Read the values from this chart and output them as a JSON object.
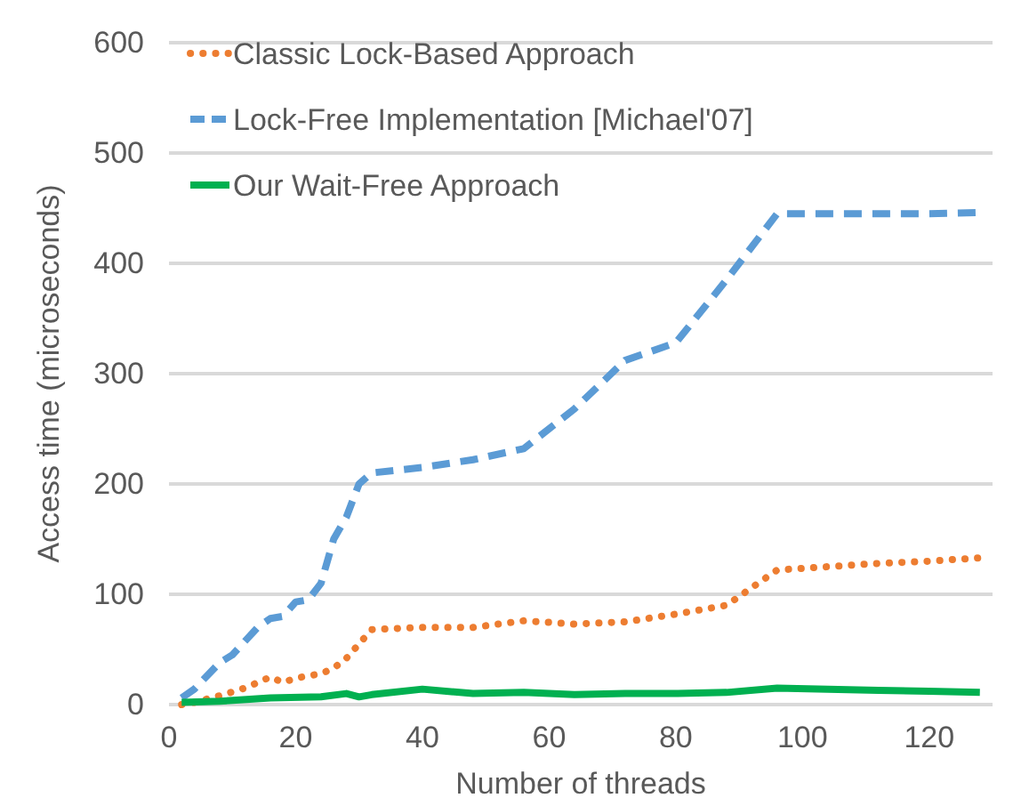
{
  "chart_data": {
    "type": "line",
    "xlabel": "Number of threads",
    "ylabel": "Access time (microseconds)",
    "xlim": [
      0,
      130
    ],
    "xticks": [
      0,
      20,
      40,
      60,
      80,
      100,
      120
    ],
    "ylim": [
      0,
      600
    ],
    "yticks": [
      0,
      100,
      200,
      300,
      400,
      500,
      600
    ],
    "grid": "y",
    "legend": "top left",
    "marker": "none",
    "series": [
      {
        "name": "Classic Lock-Based Approach",
        "color": "#ed7d31",
        "line_style": "dotted",
        "x": [
          2,
          4,
          8,
          12,
          16,
          18,
          20,
          24,
          26,
          28,
          30,
          32,
          40,
          48,
          56,
          64,
          72,
          80,
          88,
          96,
          104,
          112,
          120,
          128
        ],
        "values": [
          0,
          2,
          8,
          15,
          25,
          20,
          24,
          28,
          33,
          42,
          55,
          68,
          70,
          70,
          76,
          73,
          75,
          82,
          90,
          122,
          125,
          128,
          130,
          133
        ]
      },
      {
        "name": "Lock-Free Implementation [Michael'07]",
        "color": "#5b9bd5",
        "line_style": "dashed",
        "x": [
          2,
          4,
          8,
          10,
          14,
          16,
          18,
          20,
          22,
          24,
          26,
          28,
          30,
          32,
          40,
          48,
          56,
          64,
          72,
          80,
          88,
          96,
          104,
          112,
          120,
          128
        ],
        "values": [
          6,
          14,
          38,
          45,
          70,
          78,
          80,
          93,
          95,
          110,
          150,
          170,
          200,
          210,
          215,
          222,
          232,
          268,
          312,
          328,
          385,
          445,
          445,
          445,
          445,
          446
        ]
      },
      {
        "name": "Our Wait-Free Approach",
        "color": "#00b050",
        "line_style": "solid",
        "x": [
          2,
          8,
          16,
          24,
          28,
          30,
          32,
          40,
          48,
          56,
          64,
          72,
          80,
          88,
          96,
          104,
          112,
          120,
          128
        ],
        "values": [
          2,
          3,
          6,
          7,
          10,
          7,
          9,
          14,
          10,
          11,
          9,
          10,
          10,
          11,
          15,
          14,
          13,
          12,
          11
        ]
      }
    ]
  }
}
